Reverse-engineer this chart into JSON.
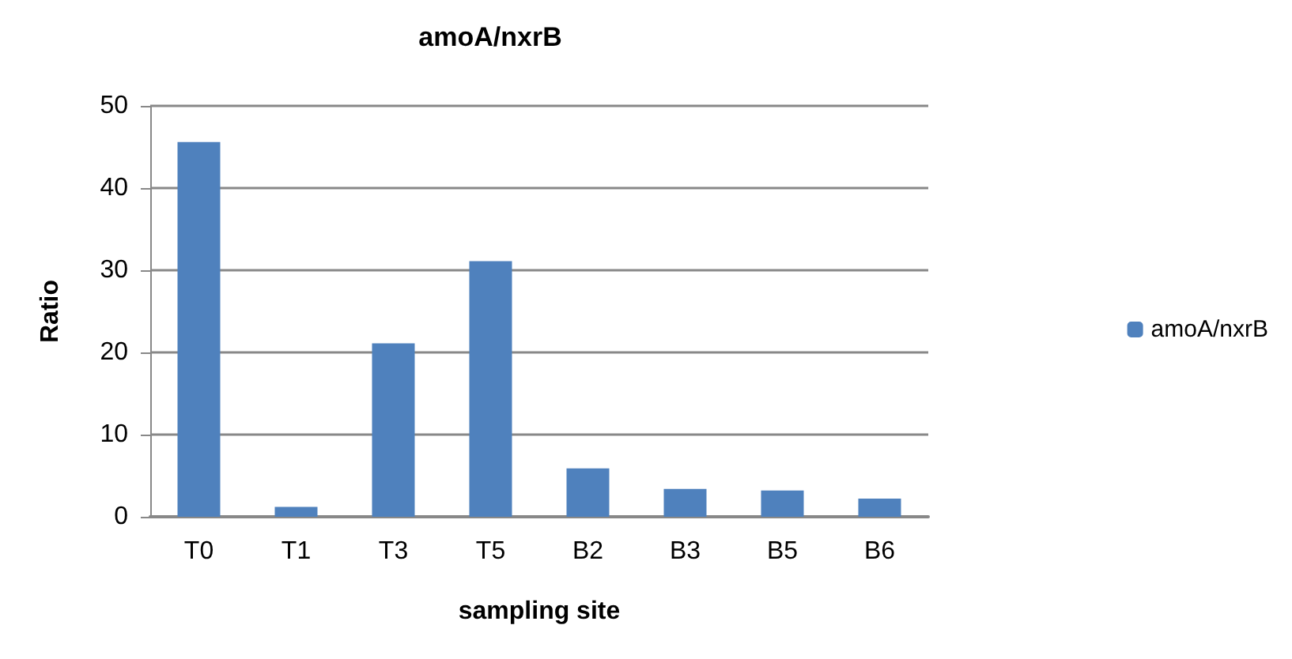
{
  "chart_data": {
    "type": "bar",
    "title": "amoA/nxrB",
    "xlabel": "sampling site",
    "ylabel": "Ratio",
    "categories": [
      "T0",
      "T1",
      "T3",
      "T5",
      "B2",
      "B3",
      "B5",
      "B6"
    ],
    "series": [
      {
        "name": "amoA/nxrB",
        "color": "#4f81bd",
        "values": [
          45.6,
          1.2,
          21.1,
          31.1,
          5.9,
          3.4,
          3.2,
          2.2
        ]
      }
    ],
    "ylim": [
      0,
      50
    ],
    "yticks": [
      0,
      10,
      20,
      30,
      40,
      50
    ],
    "grid": "y",
    "legend": "right"
  }
}
